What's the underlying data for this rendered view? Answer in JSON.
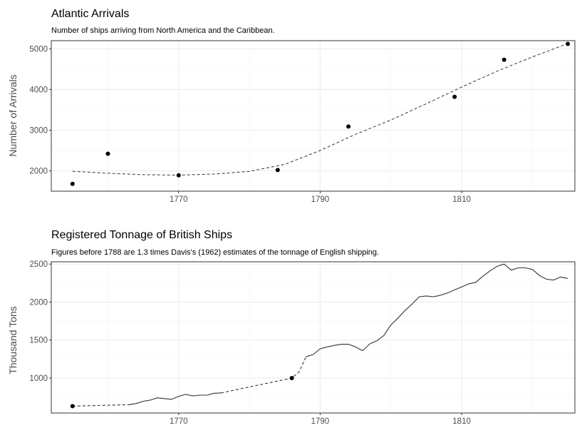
{
  "chart_data": [
    {
      "type": "scatter",
      "title": "Atlantic Arrivals",
      "subtitle": "Number of ships arriving from North America and the Caribbean.",
      "xlabel": "",
      "ylabel": "Number of Arrivals",
      "xlim": [
        1752,
        1826
      ],
      "ylim": [
        1500,
        5200
      ],
      "x_ticks": [
        1770,
        1790,
        1810
      ],
      "y_ticks": [
        2000,
        3000,
        4000,
        5000
      ],
      "grid": true,
      "points": [
        {
          "x": 1755,
          "y": 1680
        },
        {
          "x": 1760,
          "y": 2420
        },
        {
          "x": 1770,
          "y": 1890
        },
        {
          "x": 1784,
          "y": 2020
        },
        {
          "x": 1794,
          "y": 3090
        },
        {
          "x": 1809,
          "y": 3820
        },
        {
          "x": 1816,
          "y": 4730
        },
        {
          "x": 1825,
          "y": 5120
        }
      ],
      "trend": [
        {
          "x": 1755,
          "y": 1990
        },
        {
          "x": 1760,
          "y": 1940
        },
        {
          "x": 1765,
          "y": 1905
        },
        {
          "x": 1770,
          "y": 1895
        },
        {
          "x": 1775,
          "y": 1920
        },
        {
          "x": 1780,
          "y": 1985
        },
        {
          "x": 1785,
          "y": 2160
        },
        {
          "x": 1790,
          "y": 2500
        },
        {
          "x": 1795,
          "y": 2900
        },
        {
          "x": 1800,
          "y": 3250
        },
        {
          "x": 1805,
          "y": 3650
        },
        {
          "x": 1810,
          "y": 4060
        },
        {
          "x": 1815,
          "y": 4450
        },
        {
          "x": 1820,
          "y": 4800
        },
        {
          "x": 1825,
          "y": 5130
        }
      ]
    },
    {
      "type": "line",
      "title": "Registered Tonnage of British Ships",
      "subtitle": "Figures before 1788 are 1.3 times Davis's (1962) estimates of the tonnage of English shipping.",
      "xlabel": "",
      "ylabel": "Thousand Tons",
      "xlim": [
        1752,
        1826
      ],
      "ylim": [
        540,
        2530
      ],
      "x_ticks": [
        1770,
        1790,
        1810
      ],
      "y_ticks": [
        1000,
        1500,
        2000,
        2500
      ],
      "grid": true,
      "estimate_points": [
        {
          "x": 1755,
          "y": 630
        },
        {
          "x": 1786,
          "y": 1000
        }
      ],
      "segments": [
        {
          "style": "dashed",
          "points": [
            [
              1755,
              630
            ],
            [
              1763,
              650
            ]
          ]
        },
        {
          "style": "solid",
          "points": [
            [
              1763,
              650
            ],
            [
              1764,
              665
            ],
            [
              1765,
              695
            ],
            [
              1766,
              710
            ],
            [
              1767,
              740
            ],
            [
              1768,
              730
            ],
            [
              1769,
              720
            ],
            [
              1770,
              760
            ],
            [
              1771,
              785
            ],
            [
              1772,
              765
            ],
            [
              1773,
              775
            ],
            [
              1774,
              775
            ],
            [
              1775,
              800
            ],
            [
              1776,
              805
            ]
          ]
        },
        {
          "style": "dashed",
          "points": [
            [
              1776,
              805
            ],
            [
              1786,
              1000
            ],
            [
              1787,
              1080
            ],
            [
              1788,
              1280
            ]
          ]
        },
        {
          "style": "solid",
          "points": [
            [
              1788,
              1280
            ],
            [
              1789,
              1310
            ],
            [
              1790,
              1385
            ],
            [
              1791,
              1410
            ],
            [
              1792,
              1430
            ],
            [
              1793,
              1445
            ],
            [
              1794,
              1445
            ],
            [
              1795,
              1410
            ],
            [
              1796,
              1360
            ],
            [
              1797,
              1450
            ],
            [
              1798,
              1490
            ],
            [
              1799,
              1560
            ],
            [
              1800,
              1700
            ],
            [
              1801,
              1790
            ],
            [
              1802,
              1890
            ],
            [
              1803,
              1975
            ],
            [
              1804,
              2070
            ],
            [
              1805,
              2080
            ],
            [
              1806,
              2070
            ],
            [
              1807,
              2090
            ],
            [
              1808,
              2120
            ],
            [
              1809,
              2160
            ],
            [
              1810,
              2200
            ],
            [
              1811,
              2240
            ],
            [
              1812,
              2260
            ],
            [
              1813,
              2340
            ],
            [
              1814,
              2410
            ],
            [
              1815,
              2470
            ],
            [
              1816,
              2500
            ],
            [
              1817,
              2420
            ],
            [
              1818,
              2450
            ],
            [
              1819,
              2450
            ],
            [
              1820,
              2430
            ],
            [
              1821,
              2350
            ],
            [
              1822,
              2300
            ],
            [
              1823,
              2290
            ],
            [
              1824,
              2330
            ],
            [
              1825,
              2310
            ]
          ]
        }
      ]
    }
  ]
}
